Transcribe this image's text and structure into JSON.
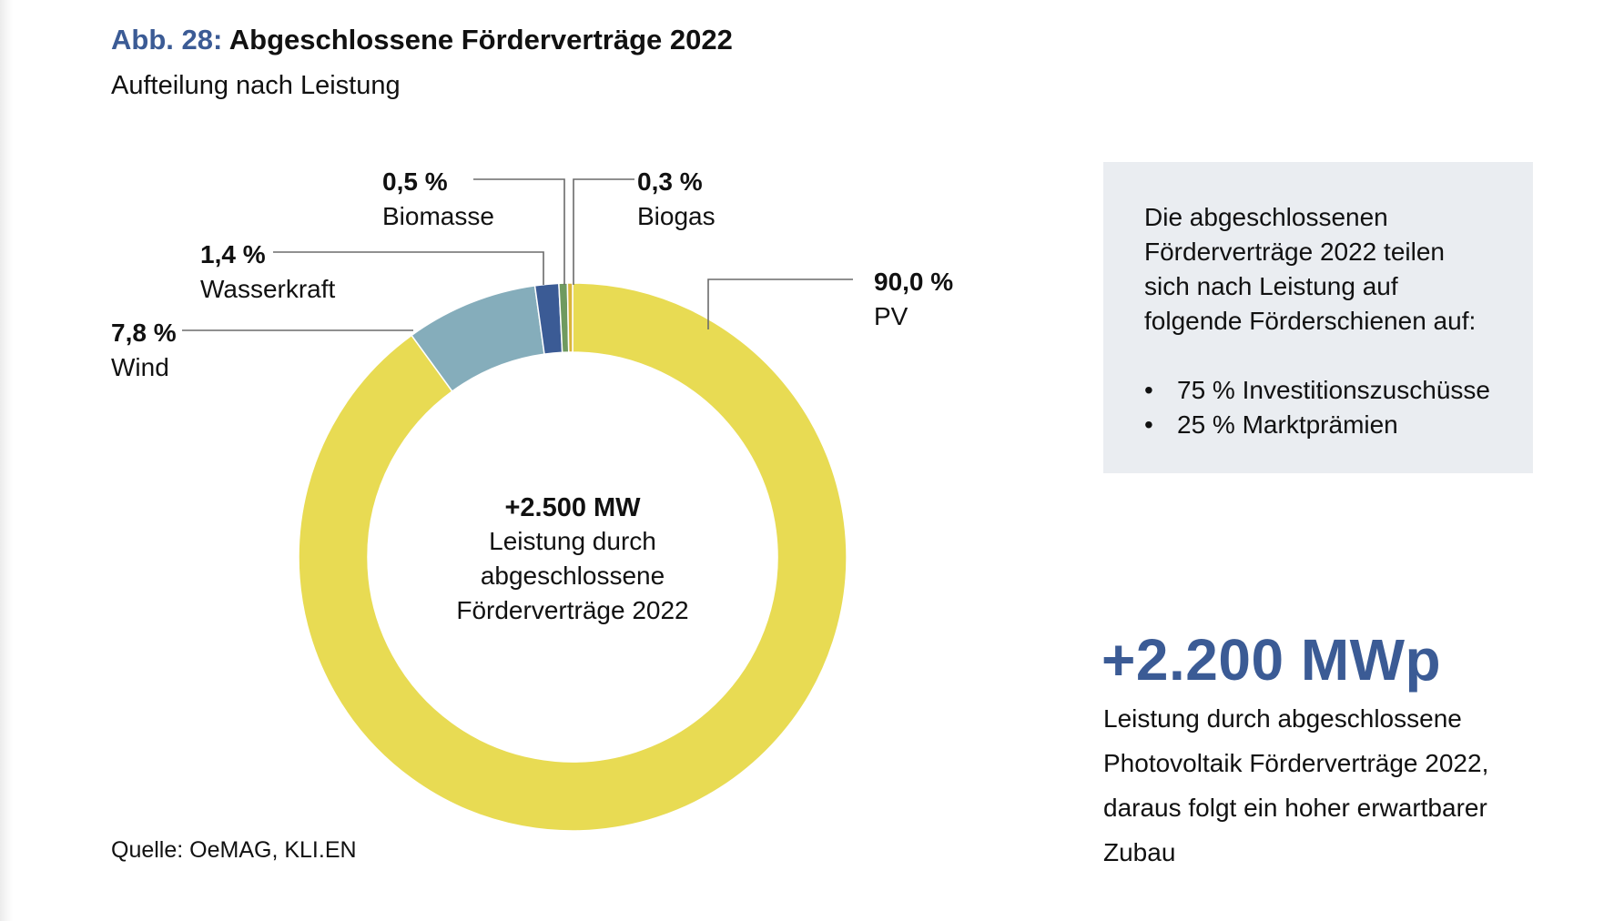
{
  "figure": {
    "number": "Abb. 28:",
    "title": "Abgeschlossene Förderverträge 2022",
    "subtitle": "Aufteilung nach Leistung",
    "source": "Quelle: OeMAG, KLI.EN"
  },
  "center": {
    "value": "+2.500 MW",
    "line1": "Leistung durch",
    "line2": "abgeschlossene",
    "line3": "Förderverträge 2022"
  },
  "info_box": {
    "text": "Die abgeschlossenen Förderverträge 2022 teilen sich nach Leistung auf folgende Förderschienen auf:",
    "items": [
      "75 % Investitionszuschüsse",
      "25 % Marktprämien"
    ]
  },
  "highlight": {
    "value": "+2.200 MWp",
    "text": "Leistung durch abgeschlossene Photovoltaik Förderverträge 2022, daraus folgt ein hoher erwartbarer Zubau"
  },
  "chart_data": {
    "type": "pie",
    "title": "Abgeschlossene Förderverträge 2022",
    "subtitle": "Aufteilung nach Leistung",
    "total": "+2.500 MW",
    "slices": [
      {
        "name": "PV",
        "value": 90.0,
        "label": "90,0 %",
        "color": "#e8db53"
      },
      {
        "name": "Wind",
        "value": 7.8,
        "label": "7,8 %",
        "color": "#85adbb"
      },
      {
        "name": "Wasserkraft",
        "value": 1.4,
        "label": "1,4 %",
        "color": "#3b5b95"
      },
      {
        "name": "Biomasse",
        "value": 0.5,
        "label": "0,5 %",
        "color": "#6f9a5f"
      },
      {
        "name": "Biogas",
        "value": 0.3,
        "label": "0,3 %",
        "color": "#d8b43a"
      }
    ]
  },
  "colors": {
    "accent": "#3b5b95",
    "box_background": "#eaedf1",
    "leader_line": "#6b6b6b"
  }
}
